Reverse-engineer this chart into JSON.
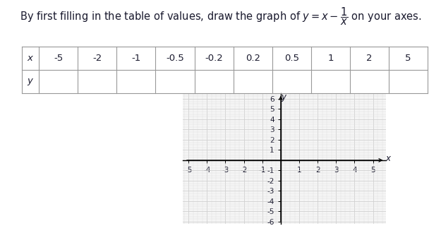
{
  "table_x_labels": [
    "-5",
    "-2",
    "-1",
    "-0.5",
    "-0.2",
    "0.2",
    "0.5",
    "1",
    "2",
    "5"
  ],
  "x_min": -5,
  "x_max": 5,
  "y_min": -6,
  "y_max": 6,
  "grid_color": "#d0d0d0",
  "axis_color": "#000000",
  "background_color": "#ffffff",
  "text_color": "#1a1a2e",
  "title_fontsize": 10.5,
  "tick_fontsize": 7.5,
  "label_fontsize": 8.5,
  "table_fontsize": 9.5
}
